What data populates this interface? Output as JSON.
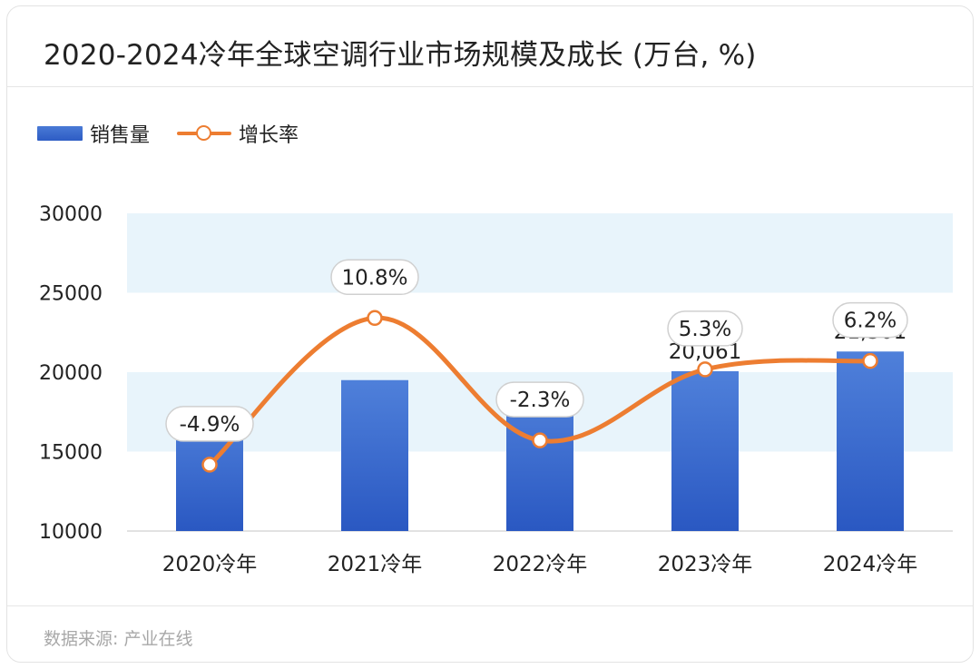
{
  "title": "2020-2024冷年全球空调行业市场规模及成长 (万台, %)",
  "legend": {
    "bar_label": "销售量",
    "line_label": "增长率"
  },
  "source": "数据来源: 产业在线",
  "colors": {
    "bar": "#3565c8",
    "line": "#ed7d31",
    "band": "#e8f4fb"
  },
  "chart_data": {
    "type": "bar",
    "categories": [
      "2020冷年",
      "2021冷年",
      "2022冷年",
      "2023冷年",
      "2024冷年"
    ],
    "series": [
      {
        "name": "销售量",
        "type": "bar",
        "axis": "left",
        "values": [
          17600,
          19500,
          19000,
          20061,
          21301
        ]
      },
      {
        "name": "增长率",
        "type": "line",
        "axis": "right",
        "values": [
          -4.9,
          10.8,
          -2.3,
          5.3,
          6.2
        ]
      }
    ],
    "data_labels": {
      "bar": [
        "",
        "",
        "",
        "20,061",
        "21,301"
      ],
      "line": [
        "-4.9%",
        "10.8%",
        "-2.3%",
        "5.3%",
        "6.2%"
      ]
    },
    "y_ticks": [
      "30000",
      "25000",
      "20000",
      "15000",
      "10000"
    ],
    "ylim": [
      10000,
      30000
    ],
    "legend_position": "top-left"
  }
}
